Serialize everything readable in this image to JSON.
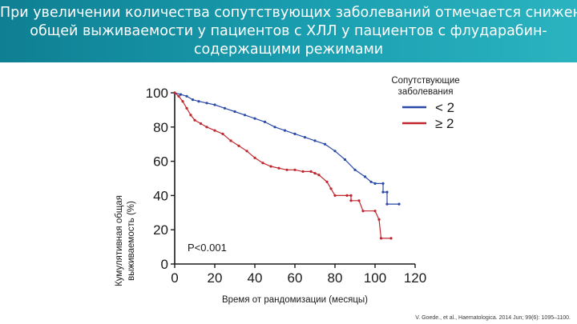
{
  "header": {
    "title_lines": [
      "При увеличении количества сопутствующих заболеваний отмечается  снижение",
      "общей выживаемости у пациентов с ХЛЛ  у пациентов с флударабин-",
      "содержащими режимами"
    ]
  },
  "chart_data": {
    "type": "line",
    "xlabel": "Время от рандомизации (месяцы)",
    "ylabel_lines": [
      "Кумулятивная общая",
      "выживаемость (%)"
    ],
    "xlim": [
      0,
      120
    ],
    "ylim": [
      0,
      100
    ],
    "x_ticks": [
      "0",
      "20",
      "40",
      "60",
      "80",
      "100",
      "120"
    ],
    "y_ticks": [
      "0",
      "20",
      "40",
      "60",
      "80",
      "100"
    ],
    "grid": false,
    "legend_title_lines": [
      "Сопутствующие",
      "заболевания"
    ],
    "legend_position": "top-right",
    "annotation": "P<0.001",
    "series": [
      {
        "name": "< 2",
        "color": "#2b4aa8",
        "points": [
          [
            0,
            100
          ],
          [
            3,
            99
          ],
          [
            6,
            98
          ],
          [
            9,
            96
          ],
          [
            12,
            95
          ],
          [
            16,
            94
          ],
          [
            20,
            93
          ],
          [
            25,
            91
          ],
          [
            30,
            89
          ],
          [
            35,
            87
          ],
          [
            40,
            85
          ],
          [
            45,
            83
          ],
          [
            50,
            80
          ],
          [
            55,
            78
          ],
          [
            60,
            76
          ],
          [
            65,
            74
          ],
          [
            70,
            72
          ],
          [
            75,
            70
          ],
          [
            80,
            66
          ],
          [
            85,
            61
          ],
          [
            90,
            55
          ],
          [
            95,
            51
          ],
          [
            98,
            48
          ],
          [
            100,
            47
          ],
          [
            104,
            47
          ],
          [
            104,
            42
          ],
          [
            106,
            42
          ],
          [
            106,
            35
          ],
          [
            112,
            35
          ]
        ]
      },
      {
        "name": "≥ 2",
        "color": "#c0262d",
        "points": [
          [
            0,
            100
          ],
          [
            2,
            98
          ],
          [
            4,
            95
          ],
          [
            6,
            91
          ],
          [
            8,
            87
          ],
          [
            10,
            84
          ],
          [
            13,
            82
          ],
          [
            16,
            80
          ],
          [
            20,
            78
          ],
          [
            24,
            76
          ],
          [
            28,
            72
          ],
          [
            32,
            69
          ],
          [
            36,
            66
          ],
          [
            40,
            62
          ],
          [
            44,
            59
          ],
          [
            48,
            57
          ],
          [
            52,
            56
          ],
          [
            56,
            55
          ],
          [
            60,
            55
          ],
          [
            64,
            54
          ],
          [
            68,
            54
          ],
          [
            70,
            53
          ],
          [
            72,
            52
          ],
          [
            76,
            48
          ],
          [
            78,
            44
          ],
          [
            80,
            40
          ],
          [
            86,
            40
          ],
          [
            88,
            40
          ],
          [
            88,
            37
          ],
          [
            92,
            37
          ],
          [
            94,
            31
          ],
          [
            100,
            31
          ],
          [
            102,
            26
          ],
          [
            103,
            15
          ],
          [
            108,
            15
          ]
        ]
      }
    ]
  },
  "citation": "V. Goede., et al., Haematologica. 2014 Jun; 99(6): 1095–1100."
}
